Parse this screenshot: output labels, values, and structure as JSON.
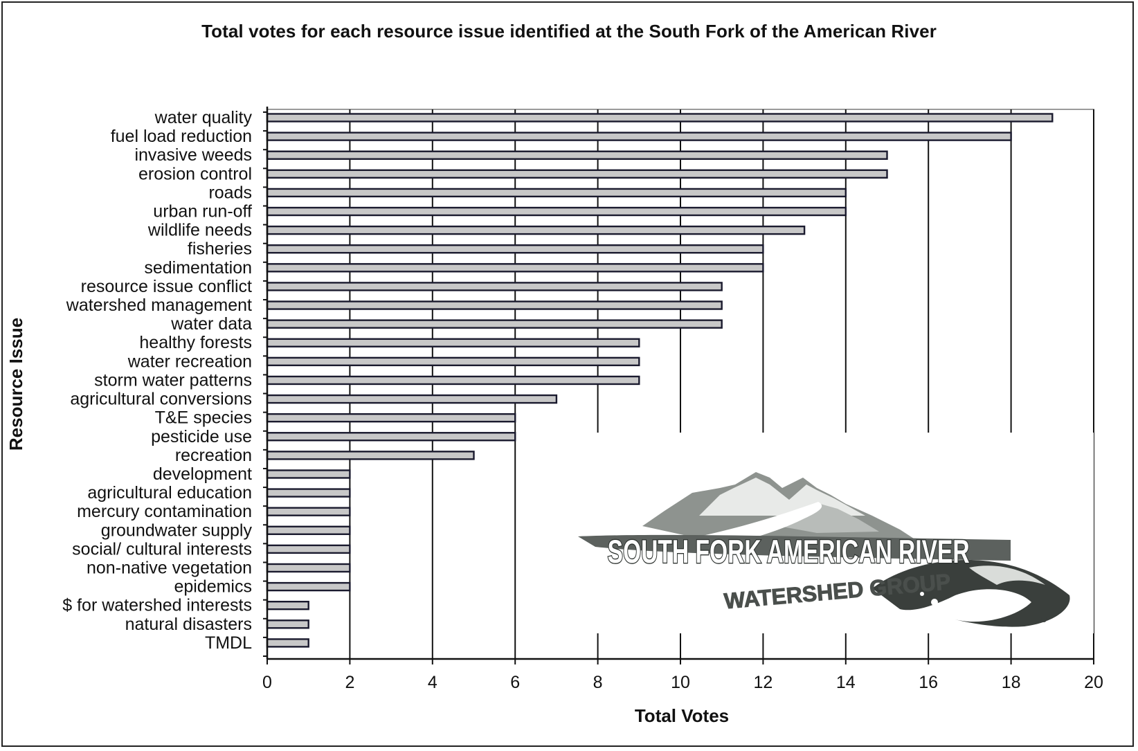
{
  "chart_data": {
    "type": "bar",
    "orientation": "horizontal",
    "title": "Total votes for each resource issue identified at the South Fork of the American River",
    "xlabel": "Total Votes",
    "ylabel": "Resource Issue",
    "xlim": [
      0,
      20
    ],
    "xticks": [
      0,
      2,
      4,
      6,
      8,
      10,
      12,
      14,
      16,
      18,
      20
    ],
    "grid": "vertical",
    "categories": [
      "water quality",
      "fuel load reduction",
      "invasive weeds",
      "erosion control",
      "roads",
      "urban run-off",
      "wildlife needs",
      "fisheries",
      "sedimentation",
      "resource issue conflict",
      "watershed management",
      "water data",
      "healthy forests",
      "water recreation",
      "storm water patterns",
      "agricultural conversions",
      "T&E species",
      "pesticide use",
      "recreation",
      "development",
      "agricultural education",
      "mercury contamination",
      "groundwater supply",
      "social/ cultural interests",
      "non-native vegetation",
      "epidemics",
      "$ for watershed interests",
      "natural disasters",
      "TMDL"
    ],
    "values": [
      19,
      18,
      15,
      15,
      14,
      14,
      13,
      12,
      12,
      11,
      11,
      11,
      9,
      9,
      9,
      7,
      6,
      6,
      5,
      2,
      2,
      2,
      2,
      2,
      2,
      2,
      1,
      1,
      1
    ],
    "colors": {
      "bar_fill": "#c8c8c8",
      "bar_stroke": "#1a1a2e",
      "grid": "#111111",
      "logo_dark": "#3a3f3c",
      "logo_mid": "#8a8f8c"
    }
  },
  "logo": {
    "line1": "SOUTH FORK AMERICAN RIVER",
    "line2": "WATERSHED GROUP"
  }
}
